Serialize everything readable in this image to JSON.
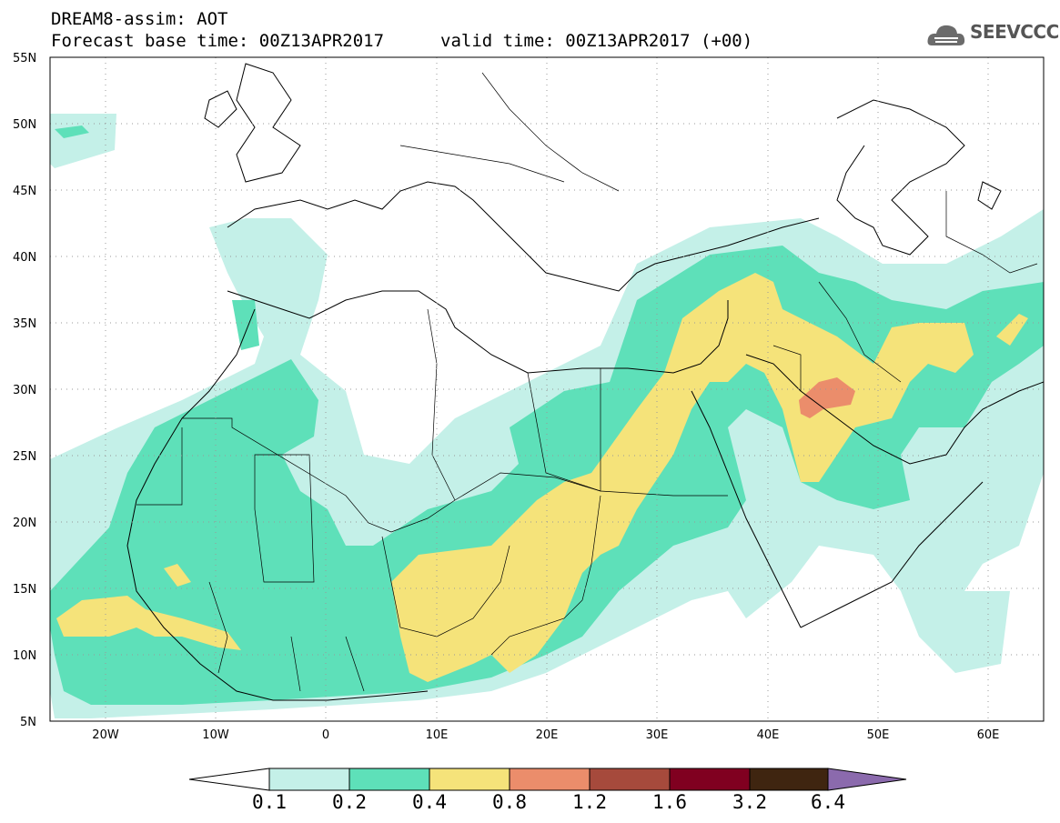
{
  "header": {
    "title_line1": "DREAM8-assim: AOT",
    "title_line2a": "Forecast base time: 00Z13APR2017",
    "title_line2b": "valid time: 00Z13APR2017 (+00)",
    "logo_text": "SEEVCCC",
    "logo_icon": "cloud-icon"
  },
  "map": {
    "projection": "lat-lon",
    "lon_range": [
      -25,
      65
    ],
    "lat_range": [
      5,
      55
    ],
    "y_ticks": [
      "55N",
      "50N",
      "45N",
      "40N",
      "35N",
      "30N",
      "25N",
      "20N",
      "15N",
      "10N",
      "5N"
    ],
    "x_ticks": [
      "20W",
      "10W",
      "0",
      "10E",
      "20E",
      "30E",
      "40E",
      "50E",
      "60E"
    ],
    "grid": "dotted"
  },
  "colorbar": {
    "labels": [
      "0.1",
      "0.2",
      "0.4",
      "0.8",
      "1.2",
      "1.6",
      "3.2",
      "6.4"
    ],
    "colors": [
      "#c4f0e8",
      "#5ee0b9",
      "#f5e37a",
      "#eb8d6b",
      "#a64a3c",
      "#800020",
      "#3f2510",
      "#8b6aad"
    ]
  }
}
